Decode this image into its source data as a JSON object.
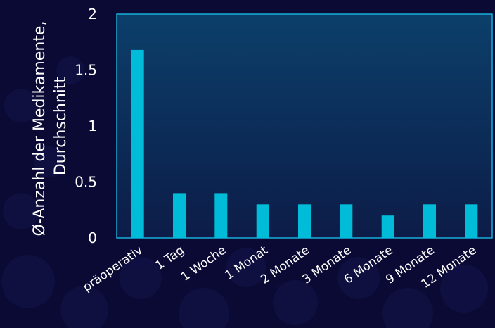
{
  "chart_data": {
    "type": "bar",
    "categories": [
      "präoperativ",
      "1 Tag",
      "1 Woche",
      "1 Monat",
      "2 Monate",
      "3 Monate",
      "6 Monate",
      "9 Monate",
      "12 Monate"
    ],
    "values": [
      1.68,
      0.4,
      0.4,
      0.3,
      0.3,
      0.3,
      0.2,
      0.3,
      0.3
    ],
    "ylabel_lines": [
      "Ø-Anzahl der Medikamente,",
      "Durchschnitt"
    ],
    "yticks": [
      "0",
      "0.5",
      "1",
      "1.5",
      "2"
    ],
    "ylim": [
      0,
      2
    ],
    "grid": false,
    "colors": {
      "bar": "#00bcd8",
      "background": "#0a0a35",
      "plot_top": "#0b3f6a",
      "plot_bottom": "#0d1c48",
      "plot_border": "#16aed8"
    }
  }
}
